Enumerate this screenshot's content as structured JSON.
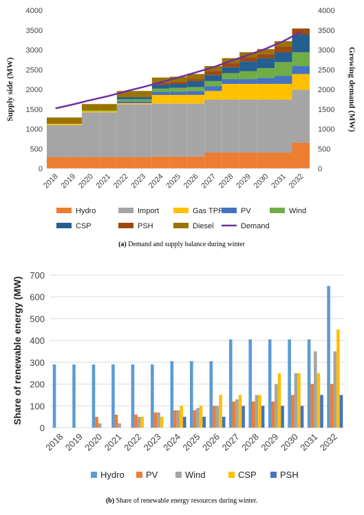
{
  "chart_data": [
    {
      "type": "bar",
      "stacked": true,
      "caption_label": "(a)",
      "caption_text": "Demand and supply balance during winter",
      "ylabel": "Supply side (MW)",
      "ylabel_right": "Growing demand (MW)",
      "ylim": [
        0,
        4000
      ],
      "yticks": [
        "0",
        "500",
        "1000",
        "1500",
        "2000",
        "2500",
        "3000",
        "3500",
        "4000"
      ],
      "ylim_right": [
        0,
        4000
      ],
      "yticks_right": [
        "0",
        "500",
        "1000",
        "1500",
        "2000",
        "2500",
        "3000",
        "3500",
        "4000"
      ],
      "grid": false,
      "legend_position": "bottom",
      "categories": [
        "2018",
        "2019",
        "2020",
        "2021",
        "2022",
        "2023",
        "2024",
        "2025",
        "2026",
        "2027",
        "2028",
        "2029",
        "2030",
        "2031",
        "2032"
      ],
      "series": [
        {
          "name": "Hydro",
          "color": "#ed7d31",
          "values": [
            290,
            290,
            290,
            290,
            290,
            290,
            300,
            300,
            300,
            400,
            400,
            400,
            400,
            400,
            650
          ]
        },
        {
          "name": "Import",
          "color": "#a5a5a5",
          "values": [
            810,
            810,
            1130,
            1130,
            1330,
            1330,
            1340,
            1340,
            1340,
            1340,
            1340,
            1340,
            1340,
            1340,
            1340
          ]
        },
        {
          "name": "Gas TPP",
          "color": "#ffc000",
          "values": [
            30,
            30,
            30,
            30,
            30,
            30,
            220,
            220,
            220,
            220,
            400,
            400,
            400,
            400,
            400
          ]
        },
        {
          "name": "PV",
          "color": "#4472c4",
          "values": [
            0,
            0,
            0,
            0,
            50,
            50,
            80,
            80,
            100,
            120,
            120,
            120,
            150,
            200,
            200
          ]
        },
        {
          "name": "Wind",
          "color": "#70ad47",
          "values": [
            0,
            0,
            20,
            20,
            50,
            50,
            80,
            100,
            100,
            130,
            150,
            200,
            250,
            350,
            350
          ]
        },
        {
          "name": "CSP",
          "color": "#255e91",
          "values": [
            0,
            0,
            0,
            0,
            50,
            50,
            100,
            100,
            150,
            150,
            150,
            250,
            250,
            250,
            450
          ]
        },
        {
          "name": "PSH",
          "color": "#9e480e",
          "values": [
            0,
            0,
            0,
            0,
            0,
            0,
            50,
            50,
            50,
            100,
            100,
            100,
            100,
            150,
            150
          ]
        },
        {
          "name": "Diesel",
          "color": "#997300",
          "values": [
            160,
            160,
            160,
            160,
            160,
            160,
            130,
            130,
            130,
            130,
            130,
            130,
            130,
            130,
            0
          ]
        }
      ],
      "line_series": {
        "name": "Demand",
        "color": "#7030a0",
        "values": [
          1520,
          1620,
          1730,
          1830,
          1950,
          2060,
          2180,
          2300,
          2430,
          2560,
          2720,
          2870,
          3030,
          3220,
          3450
        ]
      }
    },
    {
      "type": "bar",
      "stacked": false,
      "caption_label": "(b)",
      "caption_text": "Share of renewable energy resources during winter.",
      "ylabel": "Share of renewable energy (MW)",
      "ylim": [
        0,
        700
      ],
      "yticks": [
        "0",
        "100",
        "200",
        "300",
        "400",
        "500",
        "600",
        "700"
      ],
      "grid": true,
      "legend_position": "bottom",
      "categories": [
        "2018",
        "2019",
        "2020",
        "2021",
        "2022",
        "2023",
        "2024",
        "2025",
        "2026",
        "2027",
        "2028",
        "2029",
        "2030",
        "2031",
        "2032"
      ],
      "series": [
        {
          "name": "Hydro",
          "color": "#5b9bd5",
          "values": [
            290,
            290,
            290,
            290,
            290,
            290,
            305,
            305,
            305,
            405,
            405,
            405,
            405,
            405,
            650
          ]
        },
        {
          "name": "PV",
          "color": "#ed7d31",
          "values": [
            0,
            0,
            50,
            60,
            60,
            70,
            80,
            80,
            100,
            120,
            120,
            120,
            150,
            200,
            200
          ]
        },
        {
          "name": "Wind",
          "color": "#a5a5a5",
          "values": [
            0,
            0,
            20,
            20,
            50,
            70,
            80,
            90,
            100,
            130,
            150,
            200,
            250,
            350,
            350
          ]
        },
        {
          "name": "CSP",
          "color": "#ffc000",
          "values": [
            0,
            0,
            0,
            0,
            50,
            50,
            100,
            100,
            150,
            150,
            150,
            250,
            250,
            250,
            450
          ]
        },
        {
          "name": "PSH",
          "color": "#4472c4",
          "values": [
            0,
            0,
            0,
            0,
            0,
            0,
            50,
            50,
            50,
            100,
            100,
            100,
            100,
            150,
            150
          ]
        }
      ]
    }
  ]
}
